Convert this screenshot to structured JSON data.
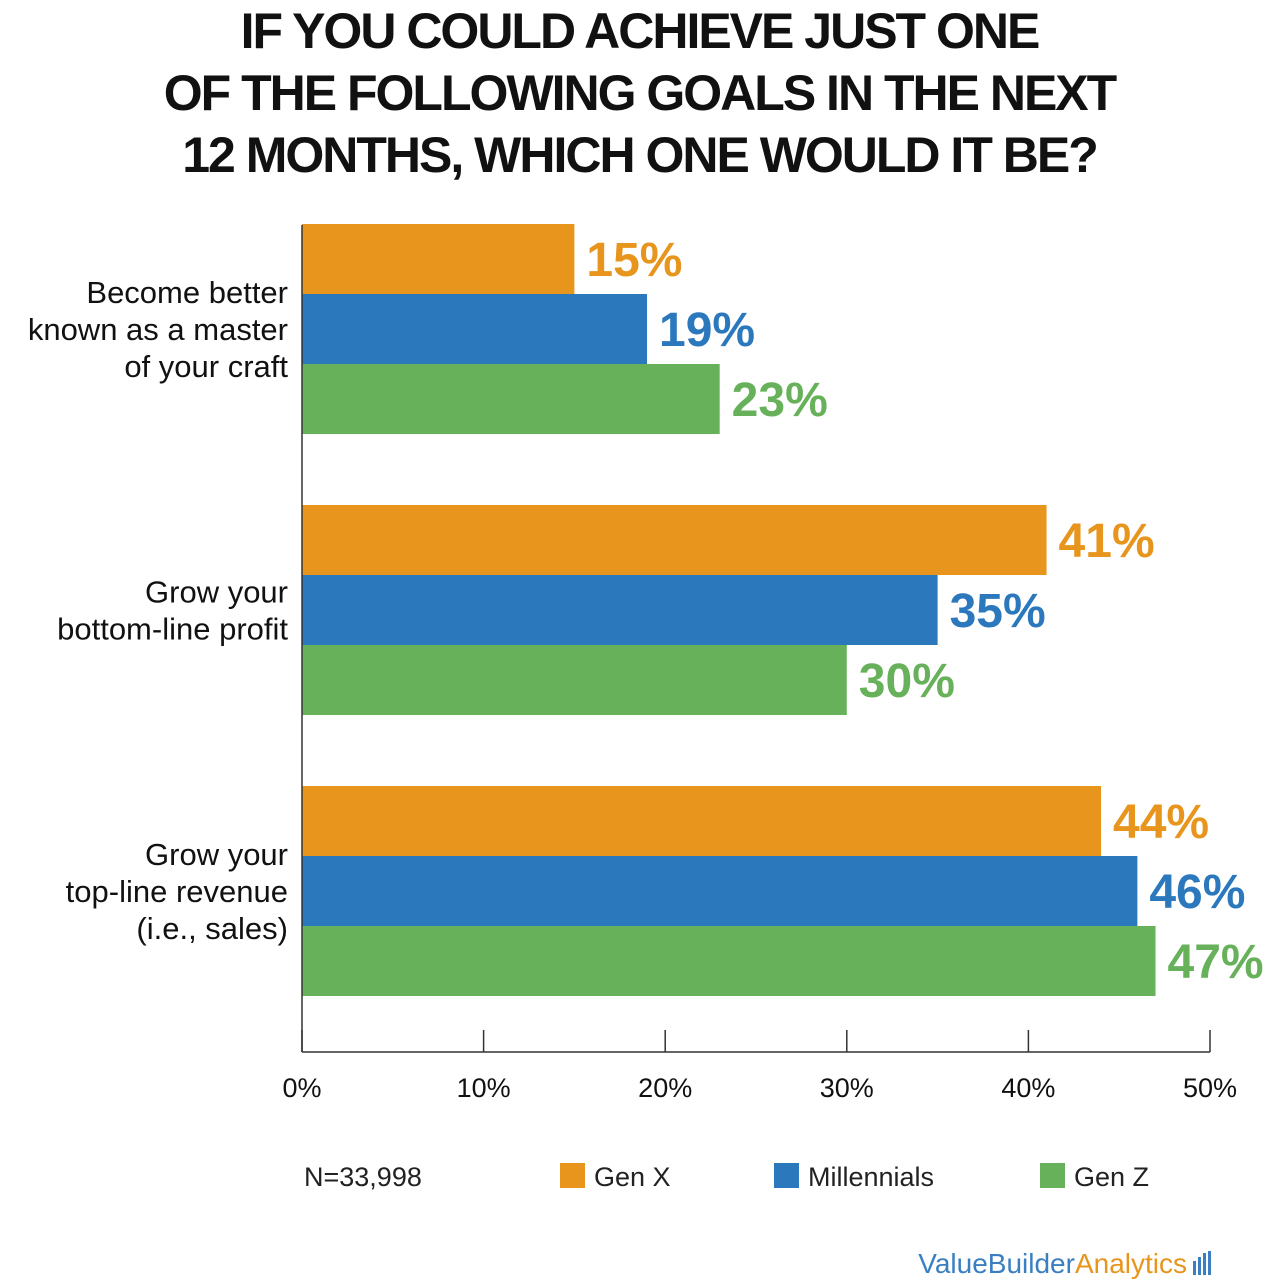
{
  "title_lines": [
    "IF YOU COULD ACHIEVE JUST ONE",
    "OF THE FOLLOWING GOALS IN THE NEXT",
    "12 MONTHS, WHICH ONE WOULD IT BE?"
  ],
  "note": "N=33,998",
  "brand": {
    "part1": "ValueBuilder",
    "part2": "Analytics",
    "icon": "bar-chart-icon"
  },
  "chart_data": {
    "type": "bar",
    "orientation": "horizontal",
    "title": "IF YOU COULD ACHIEVE JUST ONE OF THE FOLLOWING GOALS IN THE NEXT 12 MONTHS, WHICH ONE WOULD IT BE?",
    "categories": [
      [
        "Become better",
        "known as a master",
        "of your craft"
      ],
      [
        "Grow your",
        "bottom-line profit"
      ],
      [
        "Grow your",
        "top-line revenue",
        "(i.e., sales)"
      ]
    ],
    "series": [
      {
        "name": "Gen X",
        "color": "#e8951d",
        "values": [
          15,
          41,
          44
        ],
        "labels": [
          "15%",
          "41%",
          "44%"
        ]
      },
      {
        "name": "Millennials",
        "color": "#2b78bd",
        "values": [
          19,
          35,
          46
        ],
        "labels": [
          "19%",
          "35%",
          "46%"
        ]
      },
      {
        "name": "Gen Z",
        "color": "#68b15b",
        "values": [
          23,
          30,
          47
        ],
        "labels": [
          "23%",
          "30%",
          "47%"
        ]
      }
    ],
    "xlim": [
      0,
      50
    ],
    "xticks": [
      0,
      10,
      20,
      30,
      40,
      50
    ],
    "xtick_labels": [
      "0%",
      "10%",
      "20%",
      "30%",
      "40%",
      "50%"
    ],
    "grid": false,
    "legend": "bottom"
  }
}
